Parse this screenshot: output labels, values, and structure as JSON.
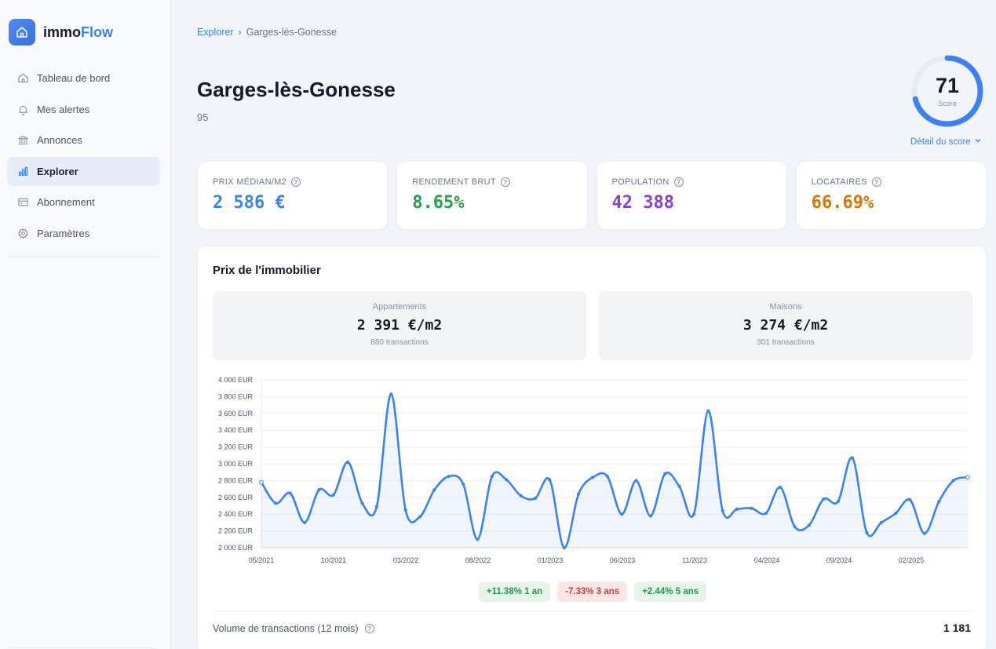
{
  "brand": {
    "name_plain": "immo",
    "name_accent": "Flow"
  },
  "sidebar": {
    "items": [
      {
        "label": "Tableau de bord",
        "icon": "home-icon"
      },
      {
        "label": "Mes alertes",
        "icon": "bell-icon"
      },
      {
        "label": "Annonces",
        "icon": "bank-icon"
      },
      {
        "label": "Explorer",
        "icon": "bar-chart-icon",
        "active": true
      },
      {
        "label": "Abonnement",
        "icon": "card-icon"
      },
      {
        "label": "Paramètres",
        "icon": "gear-icon"
      }
    ]
  },
  "breadcrumb": {
    "root": "Explorer",
    "separator": "›",
    "current": "Garges-lès-Gonesse"
  },
  "city": {
    "name": "Garges-lès-Gonesse",
    "department": "95"
  },
  "score": {
    "value": "71",
    "max": 100,
    "label": "Score",
    "detail_link": "Détail du score"
  },
  "kpis": [
    {
      "label": "PRIX MÉDIAN/M2",
      "value": "2 586  €",
      "color": "#3b82f6"
    },
    {
      "label": "RENDEMENT BRUT",
      "value": "8.65%",
      "color": "#22a34a"
    },
    {
      "label": "POPULATION",
      "value": "42 388",
      "color": "#8b3fd6"
    },
    {
      "label": "LOCATAIRES",
      "value": "66.69%",
      "color": "#d97706"
    }
  ],
  "prices": {
    "title": "Prix de l'immobilier",
    "appartements": {
      "label": "Appartements",
      "value": "2 391  €/m2",
      "count": "880 transactions"
    },
    "maisons": {
      "label": "Maisons",
      "value": "3 274  €/m2",
      "count": "301 transactions"
    }
  },
  "chart_data": {
    "type": "area",
    "y_ticks": [
      "2 000 EUR",
      "2 200 EUR",
      "2 400 EUR",
      "2 600 EUR",
      "2 800 EUR",
      "3 000 EUR",
      "3 200 EUR",
      "3 400 EUR",
      "3 600 EUR",
      "3 800 EUR",
      "4 000 EUR"
    ],
    "x_ticks": [
      "05/2021",
      "10/2021",
      "03/2022",
      "08/2022",
      "01/2023",
      "06/2023",
      "11/2023",
      "04/2024",
      "09/2024",
      "02/2025"
    ],
    "ylim": [
      2000,
      4000
    ],
    "line_color": "#3b82f6",
    "values": [
      2780,
      2530,
      2650,
      2300,
      2690,
      2630,
      3020,
      2530,
      2490,
      3830,
      2450,
      2370,
      2690,
      2850,
      2760,
      2100,
      2850,
      2810,
      2620,
      2590,
      2810,
      2000,
      2640,
      2840,
      2850,
      2400,
      2800,
      2380,
      2880,
      2730,
      2400,
      3630,
      2440,
      2460,
      2470,
      2410,
      2720,
      2250,
      2270,
      2580,
      2550,
      3070,
      2180,
      2300,
      2410,
      2570,
      2170,
      2550,
      2800,
      2840
    ]
  },
  "badges": [
    {
      "text": "+11.38% 1 an",
      "kind": "pos"
    },
    {
      "text": "-7.33% 3 ans",
      "kind": "neg"
    },
    {
      "text": "+2.44% 5 ans",
      "kind": "pos"
    }
  ],
  "volume": {
    "label": "Volume de transactions (12 mois)",
    "value": "1 181"
  }
}
